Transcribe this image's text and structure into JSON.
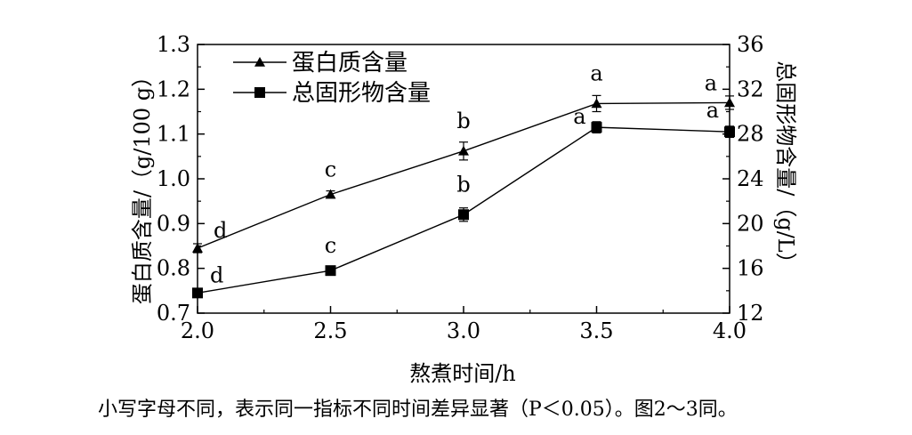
{
  "chart_data": {
    "type": "line",
    "xlabel": "熬煮时间/h",
    "ylabel_left": "蛋白质含量/（g/100 g）",
    "ylabel_right": "总固形物含量/（g/L）",
    "x": [
      2.0,
      2.5,
      3.0,
      3.5,
      4.0
    ],
    "x_ticks": [
      "2.0",
      "2.5",
      "3.0",
      "3.5",
      "4.0"
    ],
    "xlim": [
      2.0,
      4.0
    ],
    "y_left_lim": [
      0.7,
      1.3
    ],
    "y_left_ticks": [
      "0.7",
      "0.8",
      "0.9",
      "1.0",
      "1.1",
      "1.2",
      "1.3"
    ],
    "y_right_lim": [
      12,
      36
    ],
    "y_right_ticks": [
      "12",
      "16",
      "20",
      "24",
      "28",
      "32",
      "36"
    ],
    "grid": false,
    "legend_position": "top-left",
    "series": [
      {
        "name": "蛋白质含量",
        "axis": "left",
        "marker": "triangle",
        "values": [
          0.845,
          0.965,
          1.062,
          1.168,
          1.17
        ],
        "errors": [
          0.01,
          0.008,
          0.02,
          0.018,
          0.015
        ],
        "letters": [
          "d",
          "c",
          "b",
          "a",
          "a"
        ]
      },
      {
        "name": "总固形物含量",
        "axis": "right",
        "marker": "square",
        "values": [
          13.8,
          15.8,
          20.8,
          28.6,
          28.2
        ],
        "errors": [
          0.3,
          0.3,
          0.6,
          0.5,
          0.5
        ],
        "letters": [
          "d",
          "c",
          "b",
          "a",
          "a"
        ]
      }
    ]
  },
  "caption": "小写字母不同，表示同一指标不同时间差异显著（P＜0.05）。图2～3同。"
}
